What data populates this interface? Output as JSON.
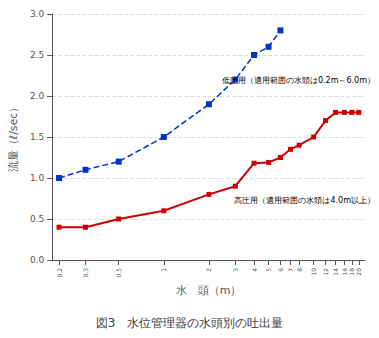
{
  "chart_data": {
    "type": "line",
    "title": "図3　水位管理器の水頭別の吐出量",
    "xlabel": "水　頭（m）",
    "ylabel": "流量（ℓ/sec）",
    "log": "x",
    "grid": "y",
    "xlim": [
      0.18,
      22
    ],
    "ylim": [
      0.0,
      3.0
    ],
    "xticks": [
      0.2,
      0.3,
      0.5,
      1,
      2,
      3,
      4,
      5,
      6,
      7,
      8,
      10,
      12,
      14,
      16,
      18,
      20
    ],
    "yticks": [
      {
        "value": 0.0,
        "label": "0.0"
      },
      0.5,
      {
        "value": 1.0,
        "label": "1.0"
      },
      1.5,
      {
        "value": 2.0,
        "label": "2.0"
      },
      2.5,
      {
        "value": 3.0,
        "label": "3.0"
      }
    ],
    "series": [
      {
        "x": [
          0.2,
          0.3,
          0.5,
          1,
          2,
          3,
          4,
          5,
          6
        ],
        "values": [
          1.0,
          1.1,
          1.2,
          1.5,
          1.9,
          2.2,
          2.5,
          2.6,
          2.8
        ],
        "color": "#0033CC",
        "line_style": "dashed",
        "marker": "square"
      },
      {
        "x": [
          0.2,
          0.3,
          0.5,
          1,
          2,
          3,
          4,
          5,
          6,
          7,
          8,
          10,
          12,
          14,
          16,
          18,
          20
        ],
        "values": [
          0.4,
          0.4,
          0.5,
          0.6,
          0.8,
          0.9,
          1.18,
          1.19,
          1.25,
          1.35,
          1.4,
          1.5,
          1.7,
          1.8,
          1.8,
          1.8,
          1.8
        ],
        "color": "#CC0000",
        "line_style": "solid",
        "marker": "square"
      }
    ],
    "annotations": [
      {
        "text": "低圧用（適用範囲の水頭は0.2m～6.0m）",
        "x": 3.6,
        "y": 2.19
      },
      {
        "text": "高圧用（適用範囲の水頭は4.0m以上）",
        "x": 3.5,
        "y": 0.72
      }
    ]
  }
}
